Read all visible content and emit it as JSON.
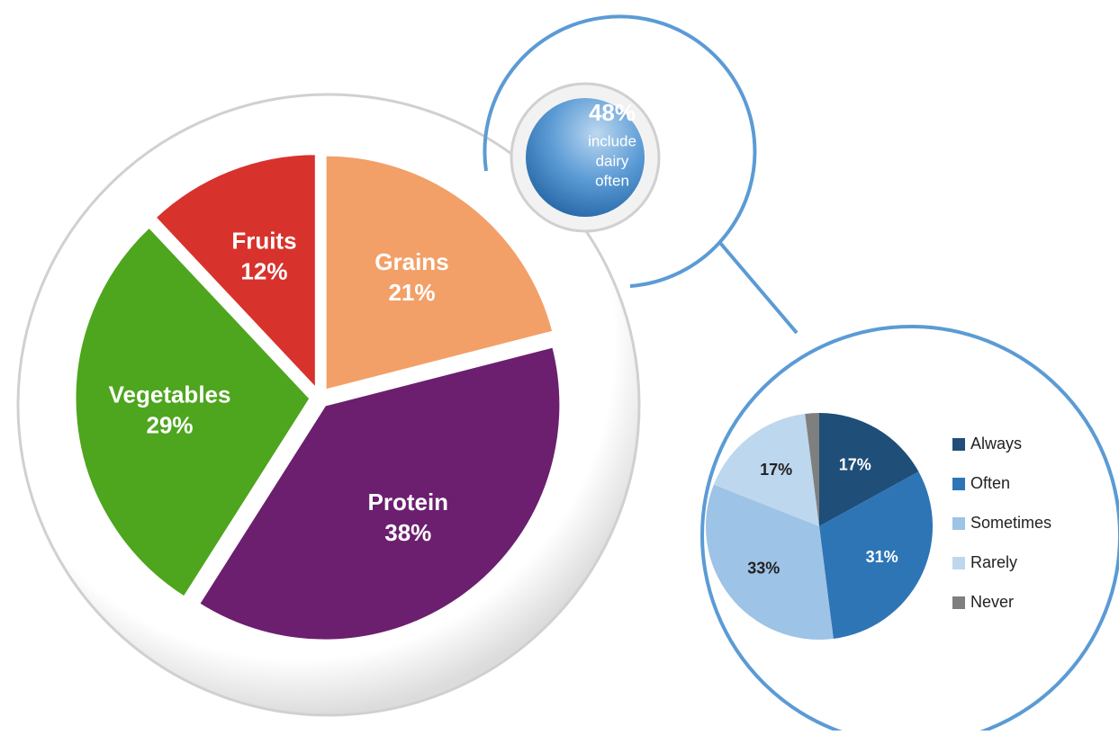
{
  "chart_data": [
    {
      "type": "pie",
      "categories": [
        "Grains",
        "Protein",
        "Vegetables",
        "Fruits"
      ],
      "values": [
        21,
        38,
        29,
        12
      ],
      "value_labels": [
        "21%",
        "38%",
        "29%",
        "12%"
      ],
      "colors": [
        "#f2a068",
        "#6b1f6e",
        "#4ea51e",
        "#d8322c"
      ]
    },
    {
      "type": "pie",
      "annotation": [
        "48%",
        "include",
        "dairy",
        "often"
      ],
      "categories": [
        "Always",
        "Often",
        "Sometimes",
        "Rarely",
        "Never"
      ],
      "values": [
        17,
        31,
        33,
        17,
        2
      ],
      "value_labels": [
        "17%",
        "31%",
        "33%",
        "17%",
        null
      ],
      "colors": [
        "#1f4e79",
        "#2e75b6",
        "#9dc3e6",
        "#bdd7ee",
        "#7f7f7f"
      ],
      "legend": "right"
    }
  ]
}
